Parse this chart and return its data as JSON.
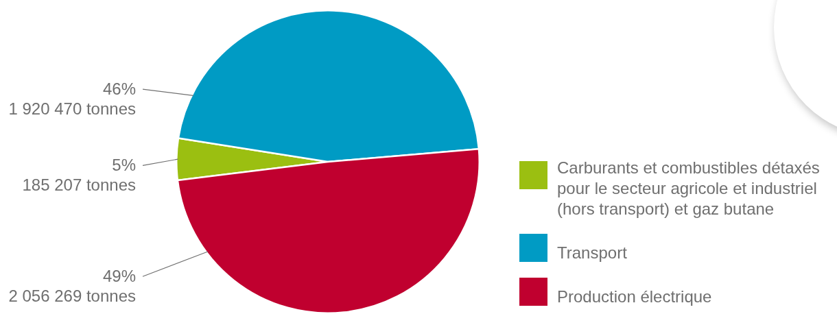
{
  "chart_data": {
    "type": "pie",
    "categories": [
      "Carburants et combustibles détaxés pour le secteur agricole et industriel (hors transport) et gaz butane",
      "Transport",
      "Production électrique"
    ],
    "values": [
      185207,
      1920470,
      2056269
    ],
    "colors": [
      "#9bbf11",
      "#009bc4",
      "#c0002f"
    ],
    "value_labels": [
      "5%\n185 207 tonnes",
      "46%\n1 920 470 tonnes",
      "49%\n2 056 269 tonnes"
    ],
    "legend": "right"
  }
}
